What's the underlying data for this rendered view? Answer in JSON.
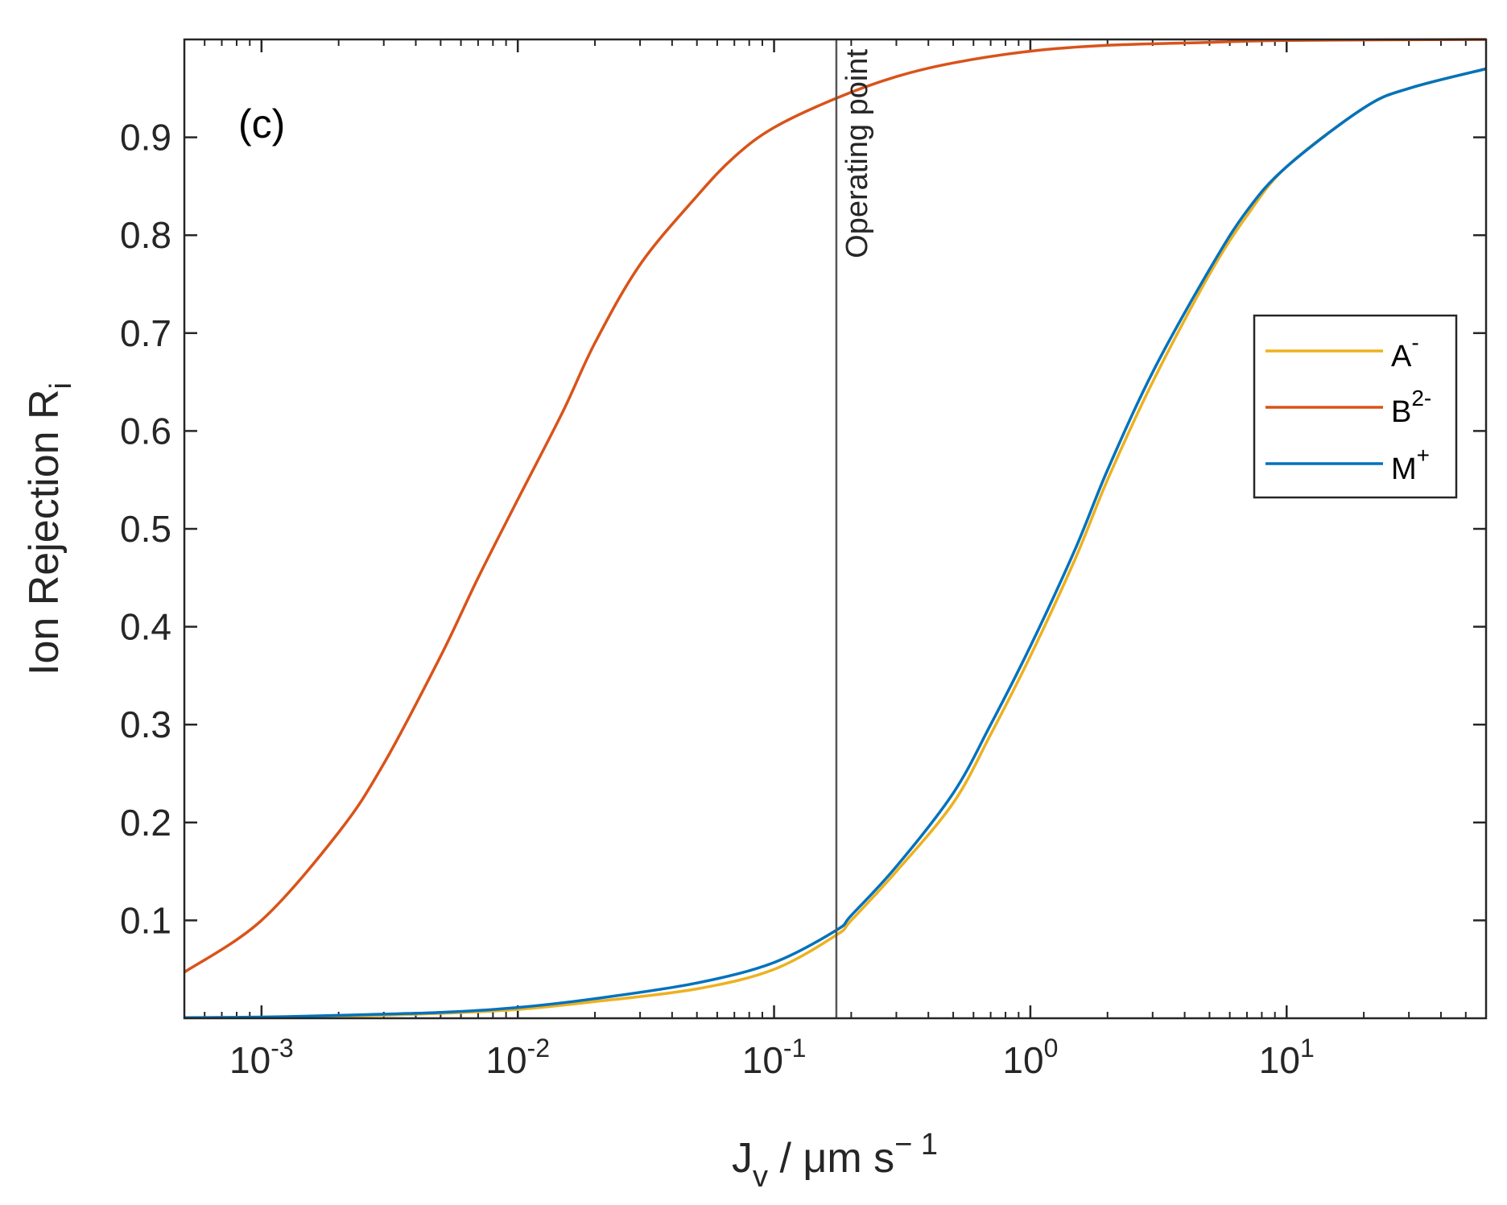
{
  "chart_data": {
    "type": "line",
    "panel_label": "(c)",
    "xscale": "log",
    "xlim": [
      0.0005,
      60
    ],
    "ylim": [
      0,
      1
    ],
    "xlabel": {
      "base": "J",
      "sub": "v",
      "rest": " / μm s",
      "sup": "− 1"
    },
    "ylabel": {
      "base": "Ion Rejection R",
      "sub": "i"
    },
    "xticks": [
      {
        "value": 0.001,
        "base": "10",
        "exp": "-3"
      },
      {
        "value": 0.01,
        "base": "10",
        "exp": "-2"
      },
      {
        "value": 0.1,
        "base": "10",
        "exp": "-1"
      },
      {
        "value": 1,
        "base": "10",
        "exp": "0"
      },
      {
        "value": 10,
        "base": "10",
        "exp": "1"
      }
    ],
    "yticks": [
      {
        "value": 0.1,
        "label": "0.1"
      },
      {
        "value": 0.2,
        "label": "0.2"
      },
      {
        "value": 0.3,
        "label": "0.3"
      },
      {
        "value": 0.4,
        "label": "0.4"
      },
      {
        "value": 0.5,
        "label": "0.5"
      },
      {
        "value": 0.6,
        "label": "0.6"
      },
      {
        "value": 0.7,
        "label": "0.7"
      },
      {
        "value": 0.8,
        "label": "0.8"
      },
      {
        "value": 0.9,
        "label": "0.9"
      }
    ],
    "vline": {
      "x": 0.175,
      "label": "Operating point",
      "color": "#555555"
    },
    "legend": {
      "location": "right"
    },
    "series": [
      {
        "key": "a",
        "name_base": "A",
        "name_sup": "-",
        "color": "#EDB120",
        "x": [
          0.0005,
          0.001,
          0.002,
          0.005,
          0.01,
          0.02,
          0.05,
          0.1,
          0.175,
          0.2,
          0.3,
          0.5,
          0.7,
          1,
          1.5,
          2,
          3,
          5,
          7,
          10,
          20,
          30,
          60
        ],
        "y": [
          0.0005,
          0.001,
          0.002,
          0.005,
          0.009,
          0.017,
          0.03,
          0.05,
          0.085,
          0.1,
          0.15,
          0.22,
          0.29,
          0.37,
          0.47,
          0.55,
          0.65,
          0.76,
          0.82,
          0.87,
          0.93,
          0.95,
          0.97
        ]
      },
      {
        "key": "b",
        "name_base": "B",
        "name_sup": "2-",
        "color": "#D95319",
        "x": [
          0.0005,
          0.001,
          0.002,
          0.003,
          0.005,
          0.007,
          0.01,
          0.015,
          0.02,
          0.03,
          0.05,
          0.07,
          0.1,
          0.175,
          0.3,
          0.5,
          1,
          2,
          5,
          10,
          60
        ],
        "y": [
          0.047,
          0.1,
          0.19,
          0.26,
          0.37,
          0.45,
          0.53,
          0.62,
          0.69,
          0.77,
          0.84,
          0.88,
          0.91,
          0.94,
          0.962,
          0.976,
          0.988,
          0.994,
          0.997,
          0.999,
          1.0
        ]
      },
      {
        "key": "m",
        "name_base": "M",
        "name_sup": "+",
        "color": "#0072BD",
        "x": [
          0.0005,
          0.001,
          0.002,
          0.005,
          0.01,
          0.02,
          0.05,
          0.1,
          0.175,
          0.2,
          0.3,
          0.5,
          0.7,
          1,
          1.5,
          2,
          3,
          5,
          7,
          10,
          20,
          30,
          60
        ],
        "y": [
          0.0006,
          0.0012,
          0.003,
          0.006,
          0.011,
          0.02,
          0.036,
          0.057,
          0.09,
          0.105,
          0.155,
          0.23,
          0.3,
          0.38,
          0.48,
          0.56,
          0.66,
          0.765,
          0.825,
          0.87,
          0.93,
          0.95,
          0.97
        ]
      }
    ]
  }
}
